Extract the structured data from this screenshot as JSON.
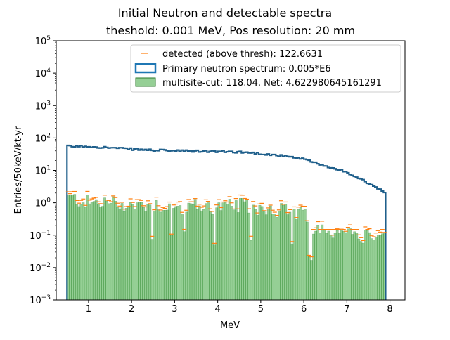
{
  "chart_data": {
    "type": "bar",
    "title": "Initial Neutron and detectable spectra",
    "subtitle": "theshold: 0.001 MeV, Pos resolution: 20 mm",
    "xlabel": "MeV",
    "ylabel": "Entries/50keV/kt-yr",
    "xlim": [
      0.25,
      8.35
    ],
    "ylim": [
      0.001,
      100000
    ],
    "yscale": "log",
    "grid": false,
    "legend_position": "top-right",
    "x_ticks": [
      "1",
      "2",
      "3",
      "4",
      "5",
      "6",
      "7",
      "8"
    ],
    "y_ticks": [
      "10^-3",
      "10^-2",
      "10^-1",
      "10^0",
      "10^1",
      "10^2",
      "10^3",
      "10^4",
      "10^5"
    ],
    "series": [
      {
        "name": "detected (above thresh): 122.6631",
        "style": "marker",
        "color": "#ff7f0e",
        "x": [
          0.5,
          1.0,
          1.5,
          2.0,
          2.5,
          3.0,
          3.5,
          4.0,
          4.5,
          5.0,
          5.5,
          6.0,
          6.5,
          7.0,
          7.5
        ],
        "values": [
          1.7,
          1.0,
          1.2,
          0.9,
          1.0,
          0.8,
          0.9,
          0.8,
          1.0,
          0.8,
          0.7,
          0.5,
          0.15,
          0.15,
          0.2
        ]
      },
      {
        "name": "Primary neutron spectrum: 0.005*E6",
        "style": "step",
        "color": "#1f5f8b",
        "x": [
          0.5,
          1.0,
          1.5,
          2.0,
          2.5,
          3.0,
          3.5,
          4.0,
          4.5,
          5.0,
          5.5,
          6.0,
          6.5,
          7.0,
          7.5,
          7.9
        ],
        "values": [
          55,
          55,
          50,
          45,
          42,
          40,
          39,
          38,
          37,
          33,
          28,
          22,
          14,
          9,
          4,
          2
        ]
      },
      {
        "name": "multisite-cut: 118.04. Net: 4.622980645161291",
        "style": "bar",
        "color": "#2ca02c",
        "x": [
          0.5,
          1.0,
          1.5,
          2.0,
          2.5,
          3.0,
          3.5,
          4.0,
          4.5,
          5.0,
          5.5,
          6.0,
          6.5,
          7.0,
          7.5
        ],
        "values": [
          1.5,
          1.0,
          1.0,
          0.8,
          0.9,
          0.7,
          0.8,
          0.7,
          0.8,
          0.7,
          0.6,
          0.4,
          0.1,
          0.1,
          0.1
        ]
      }
    ]
  }
}
